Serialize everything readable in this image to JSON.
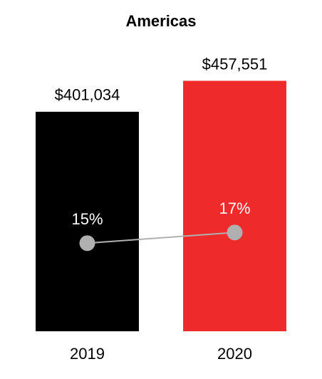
{
  "chart_data": {
    "type": "bar",
    "title": "Americas",
    "categories": [
      "2019",
      "2020"
    ],
    "ylim": [
      0,
      600000
    ],
    "y2lim": [
      -1.5,
      60
    ],
    "series": [
      {
        "type": "bar",
        "values": [
          401034,
          457551
        ],
        "value_labels": [
          "$401,034",
          "$457,551"
        ],
        "colors": [
          "#000000",
          "#ee2a2a"
        ]
      },
      {
        "type": "line",
        "axis": "y2",
        "color": "#b0b0b0",
        "values": [
          15,
          17
        ],
        "value_labels": [
          "15%",
          "17%"
        ]
      }
    ]
  }
}
